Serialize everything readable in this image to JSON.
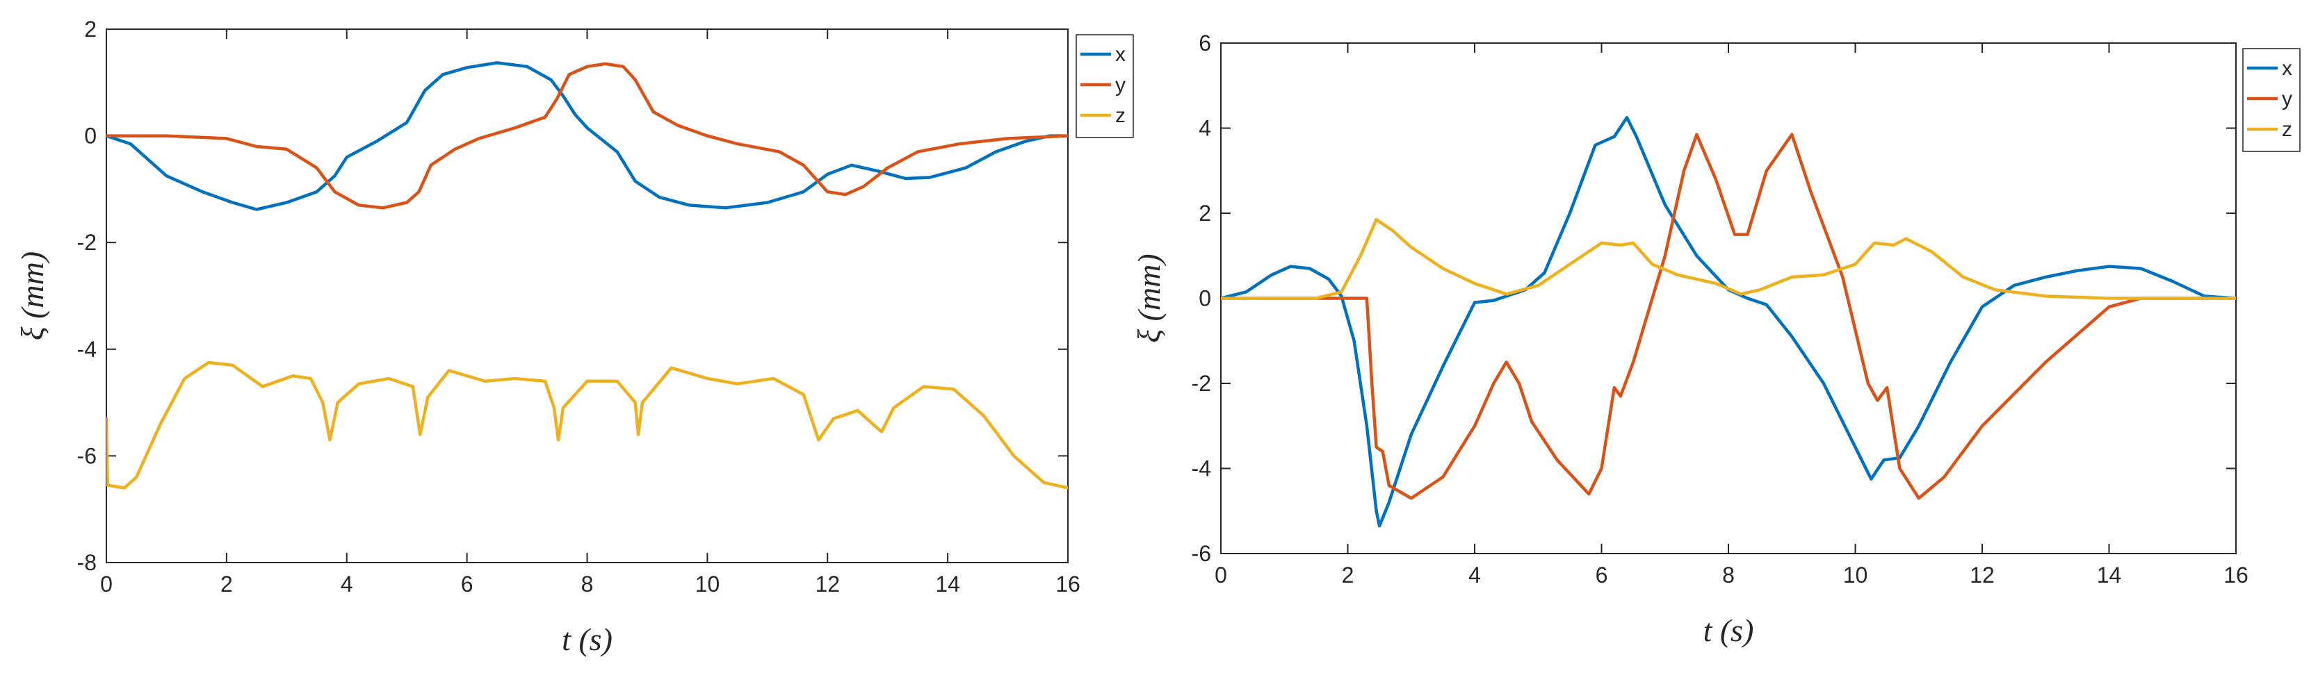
{
  "colors": {
    "x": "#0072BD",
    "y": "#D95319",
    "z": "#EDB120"
  },
  "chart_data": [
    {
      "type": "line",
      "xlabel": "t (s)",
      "ylabel": "ξ (mm)",
      "xlim": [
        0,
        16
      ],
      "ylim": [
        -8,
        2
      ],
      "xticks": [
        0,
        2,
        4,
        6,
        8,
        10,
        12,
        14,
        16
      ],
      "yticks": [
        -8,
        -6,
        -4,
        -2,
        0,
        2
      ],
      "legend": "top-right",
      "grid": false,
      "series": [
        {
          "name": "x",
          "color": "#0072BD",
          "points": [
            [
              0,
              0
            ],
            [
              0.4,
              -0.15
            ],
            [
              1,
              -0.75
            ],
            [
              1.6,
              -1.05
            ],
            [
              2.1,
              -1.25
            ],
            [
              2.5,
              -1.38
            ],
            [
              3,
              -1.25
            ],
            [
              3.5,
              -1.05
            ],
            [
              3.8,
              -0.75
            ],
            [
              4,
              -0.4
            ],
            [
              4.5,
              -0.1
            ],
            [
              5,
              0.25
            ],
            [
              5.3,
              0.85
            ],
            [
              5.6,
              1.15
            ],
            [
              6,
              1.28
            ],
            [
              6.5,
              1.37
            ],
            [
              7,
              1.3
            ],
            [
              7.4,
              1.05
            ],
            [
              7.6,
              0.75
            ],
            [
              7.8,
              0.4
            ],
            [
              8,
              0.15
            ],
            [
              8.5,
              -0.3
            ],
            [
              8.8,
              -0.85
            ],
            [
              9.2,
              -1.15
            ],
            [
              9.7,
              -1.3
            ],
            [
              10.3,
              -1.35
            ],
            [
              11,
              -1.25
            ],
            [
              11.6,
              -1.05
            ],
            [
              12,
              -0.72
            ],
            [
              12.4,
              -0.55
            ],
            [
              12.8,
              -0.65
            ],
            [
              13.3,
              -0.8
            ],
            [
              13.7,
              -0.78
            ],
            [
              14.3,
              -0.6
            ],
            [
              14.8,
              -0.3
            ],
            [
              15.3,
              -0.1
            ],
            [
              15.7,
              0
            ],
            [
              16,
              0
            ]
          ]
        },
        {
          "name": "y",
          "color": "#D95319",
          "points": [
            [
              0,
              0
            ],
            [
              1,
              0
            ],
            [
              2,
              -0.05
            ],
            [
              2.5,
              -0.2
            ],
            [
              3,
              -0.25
            ],
            [
              3.5,
              -0.6
            ],
            [
              3.8,
              -1.05
            ],
            [
              4.2,
              -1.3
            ],
            [
              4.6,
              -1.35
            ],
            [
              5,
              -1.25
            ],
            [
              5.2,
              -1.05
            ],
            [
              5.4,
              -0.55
            ],
            [
              5.8,
              -0.25
            ],
            [
              6.2,
              -0.05
            ],
            [
              6.8,
              0.15
            ],
            [
              7.3,
              0.35
            ],
            [
              7.5,
              0.7
            ],
            [
              7.7,
              1.15
            ],
            [
              8,
              1.3
            ],
            [
              8.3,
              1.35
            ],
            [
              8.6,
              1.3
            ],
            [
              8.8,
              1.05
            ],
            [
              9.1,
              0.45
            ],
            [
              9.5,
              0.2
            ],
            [
              10,
              0
            ],
            [
              10.5,
              -0.15
            ],
            [
              11.2,
              -0.3
            ],
            [
              11.6,
              -0.55
            ],
            [
              12,
              -1.05
            ],
            [
              12.3,
              -1.1
            ],
            [
              12.6,
              -0.95
            ],
            [
              13,
              -0.6
            ],
            [
              13.5,
              -0.3
            ],
            [
              14.2,
              -0.15
            ],
            [
              15,
              -0.05
            ],
            [
              16,
              0
            ]
          ]
        },
        {
          "name": "z",
          "color": "#EDB120",
          "points": [
            [
              0,
              -5.3
            ],
            [
              0.02,
              -6.55
            ],
            [
              0.3,
              -6.6
            ],
            [
              0.5,
              -6.4
            ],
            [
              0.9,
              -5.4
            ],
            [
              1.3,
              -4.55
            ],
            [
              1.7,
              -4.25
            ],
            [
              2.1,
              -4.3
            ],
            [
              2.6,
              -4.7
            ],
            [
              3.1,
              -4.5
            ],
            [
              3.4,
              -4.55
            ],
            [
              3.6,
              -5
            ],
            [
              3.72,
              -5.7
            ],
            [
              3.85,
              -5
            ],
            [
              4.2,
              -4.65
            ],
            [
              4.7,
              -4.55
            ],
            [
              5.1,
              -4.7
            ],
            [
              5.22,
              -5.6
            ],
            [
              5.35,
              -4.9
            ],
            [
              5.7,
              -4.4
            ],
            [
              6.3,
              -4.6
            ],
            [
              6.8,
              -4.55
            ],
            [
              7.3,
              -4.6
            ],
            [
              7.45,
              -5.1
            ],
            [
              7.52,
              -5.7
            ],
            [
              7.6,
              -5.1
            ],
            [
              8,
              -4.6
            ],
            [
              8.5,
              -4.6
            ],
            [
              8.8,
              -5
            ],
            [
              8.85,
              -5.6
            ],
            [
              8.92,
              -5
            ],
            [
              9.4,
              -4.35
            ],
            [
              10,
              -4.55
            ],
            [
              10.5,
              -4.65
            ],
            [
              11.1,
              -4.55
            ],
            [
              11.6,
              -4.85
            ],
            [
              11.85,
              -5.7
            ],
            [
              12.1,
              -5.3
            ],
            [
              12.5,
              -5.15
            ],
            [
              12.9,
              -5.55
            ],
            [
              13.1,
              -5.1
            ],
            [
              13.6,
              -4.7
            ],
            [
              14.1,
              -4.75
            ],
            [
              14.6,
              -5.25
            ],
            [
              15.1,
              -6
            ],
            [
              15.6,
              -6.5
            ],
            [
              16,
              -6.6
            ]
          ]
        }
      ]
    },
    {
      "type": "line",
      "xlabel": "t (s)",
      "ylabel": "ξ (mm)",
      "xlim": [
        0,
        16
      ],
      "ylim": [
        -6,
        6
      ],
      "xticks": [
        0,
        2,
        4,
        6,
        8,
        10,
        12,
        14,
        16
      ],
      "yticks": [
        -6,
        -4,
        -2,
        0,
        2,
        4,
        6
      ],
      "legend": "top-right",
      "grid": false,
      "series": [
        {
          "name": "x",
          "color": "#0072BD",
          "points": [
            [
              0,
              0
            ],
            [
              0.4,
              0.15
            ],
            [
              0.8,
              0.55
            ],
            [
              1.1,
              0.75
            ],
            [
              1.4,
              0.7
            ],
            [
              1.7,
              0.45
            ],
            [
              1.9,
              0.05
            ],
            [
              2.1,
              -1
            ],
            [
              2.3,
              -3
            ],
            [
              2.45,
              -5
            ],
            [
              2.5,
              -5.35
            ],
            [
              2.65,
              -4.8
            ],
            [
              3,
              -3.2
            ],
            [
              3.5,
              -1.6
            ],
            [
              4,
              -0.1
            ],
            [
              4.3,
              -0.05
            ],
            [
              4.8,
              0.2
            ],
            [
              5.1,
              0.6
            ],
            [
              5.5,
              2
            ],
            [
              5.9,
              3.6
            ],
            [
              6.2,
              3.8
            ],
            [
              6.4,
              4.25
            ],
            [
              6.55,
              3.8
            ],
            [
              7,
              2.2
            ],
            [
              7.5,
              1
            ],
            [
              8,
              0.2
            ],
            [
              8.3,
              0
            ],
            [
              8.6,
              -0.15
            ],
            [
              9,
              -0.9
            ],
            [
              9.5,
              -2
            ],
            [
              10,
              -3.5
            ],
            [
              10.25,
              -4.25
            ],
            [
              10.45,
              -3.8
            ],
            [
              10.7,
              -3.75
            ],
            [
              11,
              -3
            ],
            [
              11.5,
              -1.5
            ],
            [
              12,
              -0.2
            ],
            [
              12.5,
              0.3
            ],
            [
              13,
              0.5
            ],
            [
              13.5,
              0.65
            ],
            [
              14,
              0.75
            ],
            [
              14.5,
              0.7
            ],
            [
              15,
              0.4
            ],
            [
              15.5,
              0.05
            ],
            [
              16,
              0
            ]
          ]
        },
        {
          "name": "y",
          "color": "#D95319",
          "points": [
            [
              0,
              0
            ],
            [
              1,
              0
            ],
            [
              2,
              0
            ],
            [
              2.3,
              0
            ],
            [
              2.38,
              -2
            ],
            [
              2.45,
              -3.5
            ],
            [
              2.55,
              -3.6
            ],
            [
              2.65,
              -4.4
            ],
            [
              3,
              -4.7
            ],
            [
              3.5,
              -4.2
            ],
            [
              4,
              -3
            ],
            [
              4.3,
              -2
            ],
            [
              4.5,
              -1.5
            ],
            [
              4.7,
              -2
            ],
            [
              4.9,
              -2.9
            ],
            [
              5.3,
              -3.8
            ],
            [
              5.8,
              -4.6
            ],
            [
              6,
              -4
            ],
            [
              6.2,
              -2.1
            ],
            [
              6.3,
              -2.3
            ],
            [
              6.5,
              -1.5
            ],
            [
              7,
              1
            ],
            [
              7.3,
              3
            ],
            [
              7.5,
              3.85
            ],
            [
              7.8,
              2.8
            ],
            [
              8.1,
              1.5
            ],
            [
              8.3,
              1.5
            ],
            [
              8.6,
              3
            ],
            [
              9,
              3.85
            ],
            [
              9.3,
              2.5
            ],
            [
              9.8,
              0.5
            ],
            [
              10.2,
              -2
            ],
            [
              10.35,
              -2.4
            ],
            [
              10.5,
              -2.1
            ],
            [
              10.7,
              -4
            ],
            [
              11,
              -4.7
            ],
            [
              11.4,
              -4.2
            ],
            [
              12,
              -3
            ],
            [
              13,
              -1.5
            ],
            [
              14,
              -0.2
            ],
            [
              14.5,
              0
            ],
            [
              16,
              0
            ]
          ]
        },
        {
          "name": "z",
          "color": "#EDB120",
          "points": [
            [
              0,
              0
            ],
            [
              1.5,
              0
            ],
            [
              1.9,
              0.15
            ],
            [
              2.2,
              1
            ],
            [
              2.45,
              1.85
            ],
            [
              2.7,
              1.6
            ],
            [
              3,
              1.2
            ],
            [
              3.5,
              0.7
            ],
            [
              4,
              0.35
            ],
            [
              4.5,
              0.1
            ],
            [
              5,
              0.3
            ],
            [
              5.5,
              0.8
            ],
            [
              6,
              1.3
            ],
            [
              6.3,
              1.25
            ],
            [
              6.5,
              1.3
            ],
            [
              6.8,
              0.8
            ],
            [
              7.2,
              0.55
            ],
            [
              7.8,
              0.35
            ],
            [
              8.2,
              0.1
            ],
            [
              8.5,
              0.2
            ],
            [
              9,
              0.5
            ],
            [
              9.5,
              0.55
            ],
            [
              10,
              0.8
            ],
            [
              10.3,
              1.3
            ],
            [
              10.6,
              1.25
            ],
            [
              10.8,
              1.4
            ],
            [
              11.2,
              1.1
            ],
            [
              11.7,
              0.5
            ],
            [
              12.2,
              0.2
            ],
            [
              13,
              0.05
            ],
            [
              14,
              0
            ],
            [
              16,
              0
            ]
          ]
        }
      ]
    }
  ]
}
